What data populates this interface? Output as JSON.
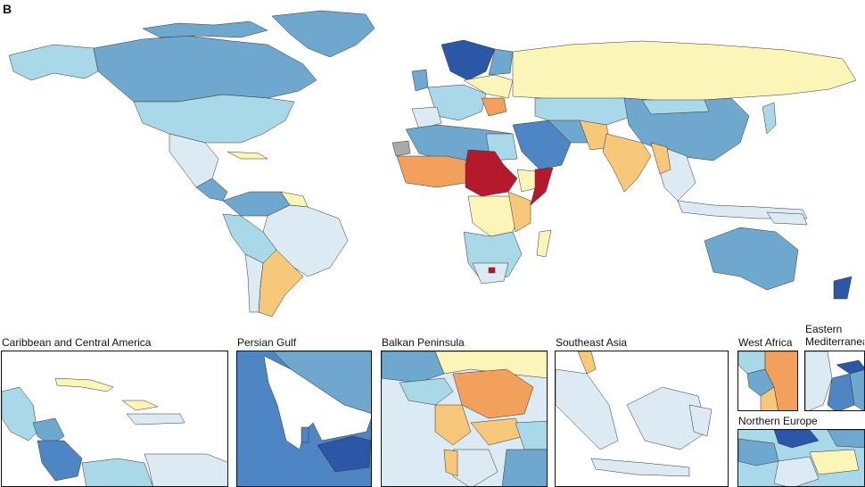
{
  "figure": {
    "panel_label": "B",
    "colors": {
      "very_low": "#dcebf3",
      "low": "#a9d8e8",
      "mid_low": "#6fa8cf",
      "low_mid": "#4d86c2",
      "deep": "#2c57a7",
      "neutral": "#fbf5b8",
      "mid_high": "#f7c77a",
      "high": "#f2a05b",
      "very_high": "#b41a2b",
      "no_data": "#a9a9a9"
    }
  },
  "insets": [
    {
      "title": "Caribbean and Central America"
    },
    {
      "title": "Persian Gulf"
    },
    {
      "title": "Balkan Peninsula"
    },
    {
      "title": "Southeast Asia"
    },
    {
      "title": "West Africa"
    },
    {
      "title": "Eastern Mediterranean"
    },
    {
      "title": "Northern Europe"
    }
  ]
}
